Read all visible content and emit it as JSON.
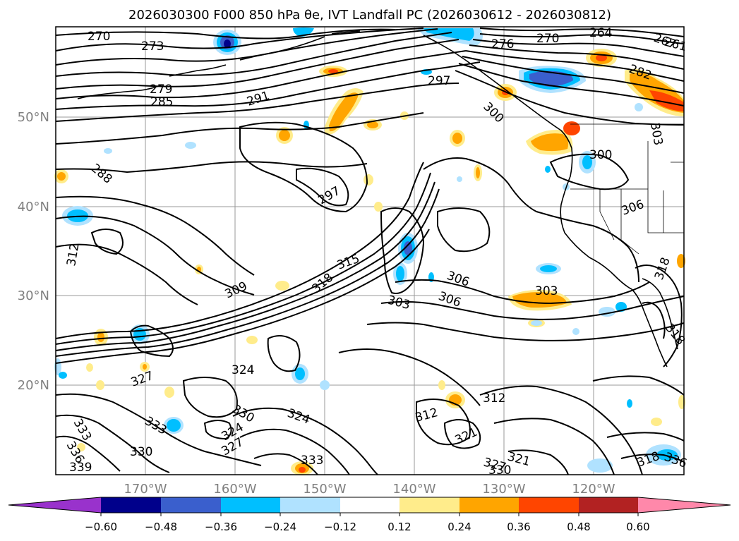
{
  "title": {
    "text": "2026030300 F000 850 hPa θe, IVT Landfall PC (2026030612 - 2026030812)"
  },
  "axes": {
    "lat_labels": [
      "50°N",
      "40°N",
      "30°N",
      "20°N"
    ],
    "lon_labels": [
      "170°W",
      "160°W",
      "150°W",
      "140°W",
      "130°W",
      "120°W"
    ]
  },
  "colorbar": {
    "tick_labels": [
      "−0.60",
      "−0.48",
      "−0.36",
      "−0.24",
      "−0.12",
      "0.12",
      "0.24",
      "0.36",
      "0.48",
      "0.60"
    ],
    "colors": [
      "#9932cc",
      "#00008b",
      "#3a5fcd",
      "#00bfff",
      "#b0e2ff",
      "#ffffff",
      "#ffec8b",
      "#ffa500",
      "#ff4500",
      "#b22222",
      "#ff88aa"
    ]
  },
  "contour_labels": [
    {
      "text": "270"
    },
    {
      "text": "273"
    },
    {
      "text": "279"
    },
    {
      "text": "285"
    },
    {
      "text": "291"
    },
    {
      "text": "288"
    },
    {
      "text": "297"
    },
    {
      "text": "297"
    },
    {
      "text": "300"
    },
    {
      "text": "264"
    },
    {
      "text": "267"
    },
    {
      "text": "261"
    },
    {
      "text": "276"
    },
    {
      "text": "270"
    },
    {
      "text": "282"
    },
    {
      "text": "303"
    },
    {
      "text": "300"
    },
    {
      "text": "306"
    },
    {
      "text": "312"
    },
    {
      "text": "315"
    },
    {
      "text": "309"
    },
    {
      "text": "318"
    },
    {
      "text": "303"
    },
    {
      "text": "306"
    },
    {
      "text": "306"
    },
    {
      "text": "303"
    },
    {
      "text": "318"
    },
    {
      "text": "318"
    },
    {
      "text": "327"
    },
    {
      "text": "324"
    },
    {
      "text": "333"
    },
    {
      "text": "330"
    },
    {
      "text": "324"
    },
    {
      "text": "327"
    },
    {
      "text": "324"
    },
    {
      "text": "333"
    },
    {
      "text": "333"
    },
    {
      "text": "336"
    },
    {
      "text": "330"
    },
    {
      "text": "339"
    },
    {
      "text": "312"
    },
    {
      "text": "312"
    },
    {
      "text": "321"
    },
    {
      "text": "327"
    },
    {
      "text": "330"
    },
    {
      "text": "321"
    },
    {
      "text": "318"
    },
    {
      "text": "336"
    }
  ]
}
